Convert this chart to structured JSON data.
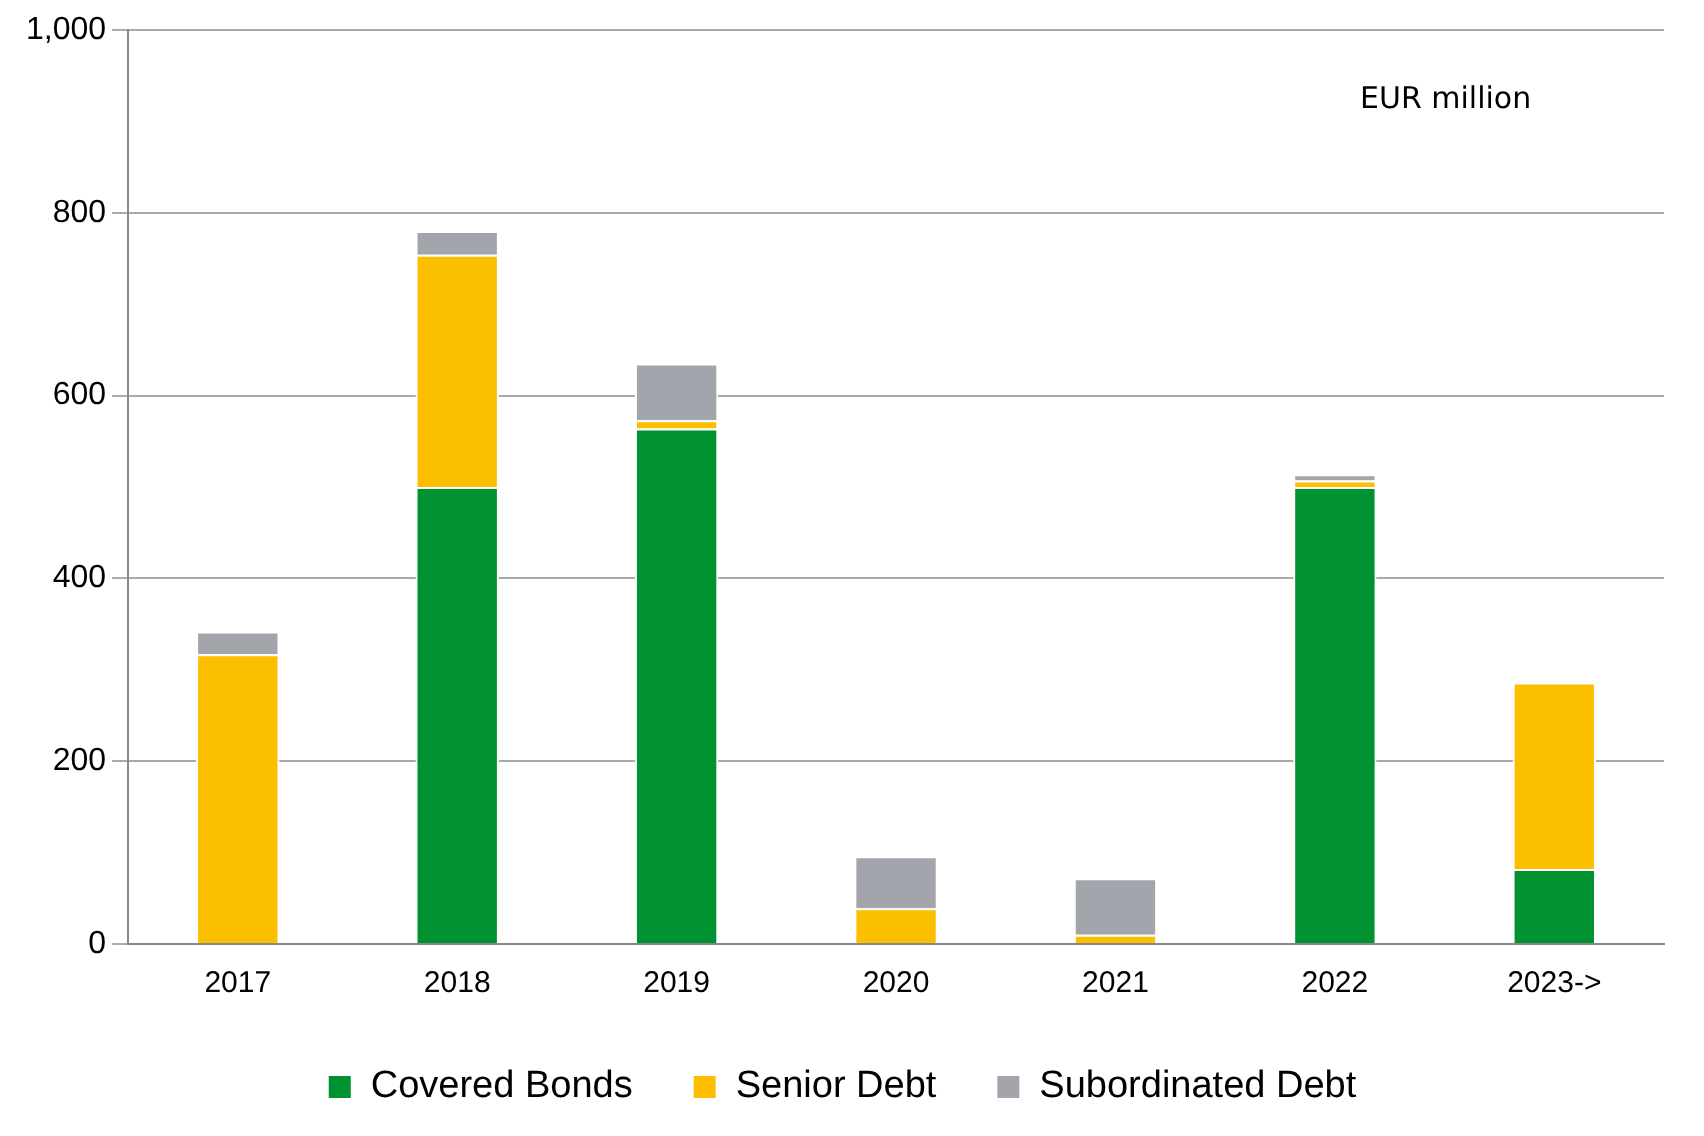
{
  "chart_data": {
    "type": "bar",
    "stacked": true,
    "categories": [
      "2017",
      "2018",
      "2019",
      "2020",
      "2021",
      "2022",
      "2023->"
    ],
    "series": [
      {
        "name": "Covered Bonds",
        "color": "#009130",
        "values": [
          0,
          500,
          564,
          0,
          0,
          500,
          82
        ]
      },
      {
        "name": "Senior Debt",
        "color": "#fcbf00",
        "values": [
          317,
          254,
          9,
          39,
          10,
          7,
          204
        ]
      },
      {
        "name": "Subordinated Debt",
        "color": "#a2a5ab",
        "values": [
          25,
          26,
          62,
          57,
          62,
          7,
          0
        ]
      }
    ],
    "ylim": [
      0,
      1000
    ],
    "yticks": [
      0,
      {
        "value": 200,
        "label": "200"
      },
      {
        "value": 400,
        "label": "400"
      },
      {
        "value": 600,
        "label": "600"
      },
      {
        "value": 800,
        "label": "800"
      },
      {
        "value": 1000,
        "label": "1,000"
      }
    ],
    "grid": "y",
    "legend": "bottom",
    "annotations": [
      "EUR million"
    ]
  }
}
